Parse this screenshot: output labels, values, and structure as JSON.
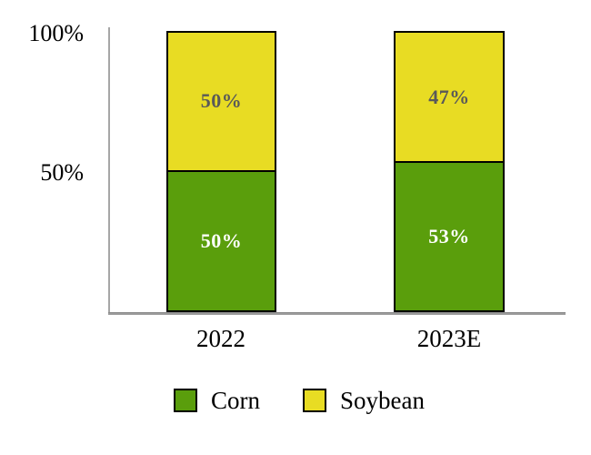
{
  "chart_data": {
    "type": "bar",
    "subtype": "stacked-100-percent",
    "title": "",
    "categories": [
      "2022",
      "2023E"
    ],
    "series": [
      {
        "name": "Corn",
        "color": "#5a9e0c",
        "values": [
          50,
          53
        ],
        "labels": [
          "50%",
          "53%"
        ],
        "label_color": "#ffffff",
        "stack_position": "bottom"
      },
      {
        "name": "Soybean",
        "color": "#e8dc23",
        "values": [
          50,
          47
        ],
        "labels": [
          "50%",
          "47%"
        ],
        "label_color": "#595959",
        "stack_position": "top"
      }
    ],
    "y_axis": {
      "ticks": [
        "100%",
        "50%"
      ],
      "min": 0,
      "max": 100,
      "grid": false
    },
    "legend": {
      "position": "bottom",
      "items": [
        {
          "label": "Corn",
          "color": "#5a9e0c"
        },
        {
          "label": "Soybean",
          "color": "#e8dc23"
        }
      ]
    },
    "colors": {
      "axis_line": "#a6a6a6",
      "bar_border": "#000000",
      "background": "#ffffff",
      "tick_text": "#000000"
    }
  }
}
